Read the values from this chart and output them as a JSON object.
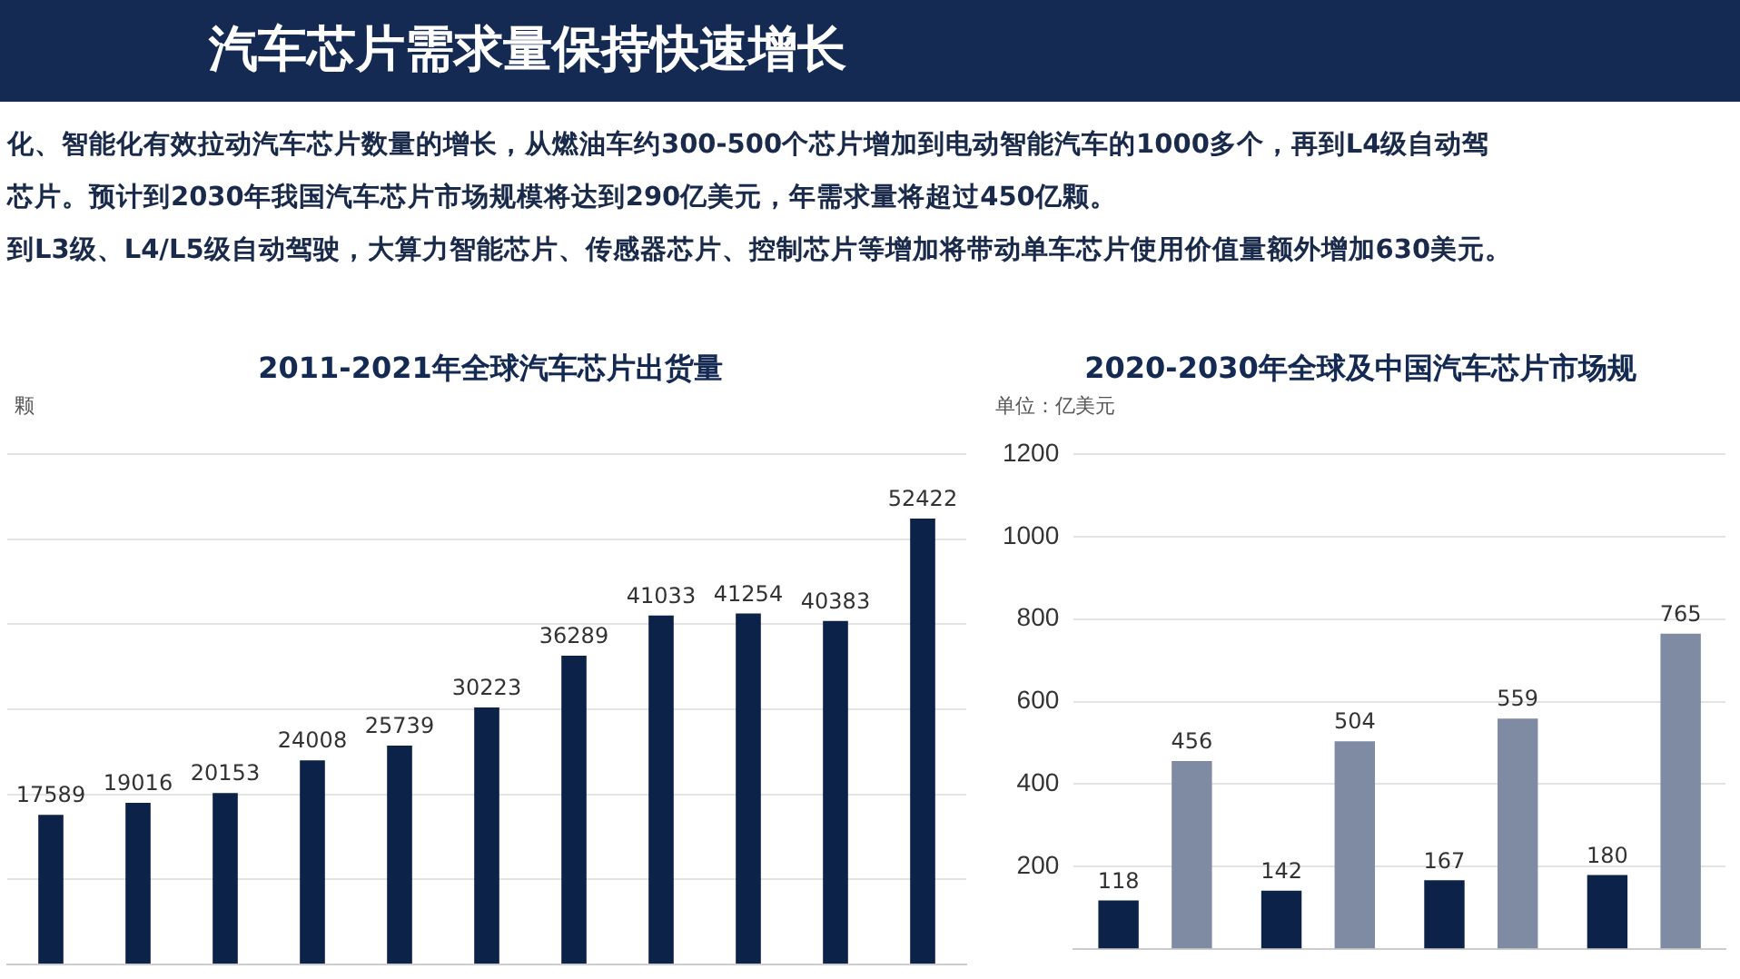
{
  "chart_data": [
    {
      "type": "other",
      "title": "汽车芯片需求量保持快速增长",
      "annotations": [
        "化、智能化有效拉动汽车芯片数量的增长，从燃油车约300-500个芯片增加到电动智能汽车的1000多个，再到L4级自动驾",
        "芯片。预计到2030年我国汽车芯片市场规模将达到290亿美元，年需求量将超过450亿颗。",
        "到L3级、L4/L5级自动驾驶，大算力智能芯片、传感器芯片、控制芯片等增加将带动单车芯片使用价值量额外增加630美元。"
      ]
    },
    {
      "type": "bar",
      "title": "2011-2021年全球汽车芯片出货量",
      "ylabel": "颗",
      "categories": [
        null,
        null,
        null,
        null,
        null,
        null,
        null,
        null,
        null,
        null,
        null
      ],
      "series": [
        {
          "color": "#0d2248",
          "values": [
            17589,
            19016,
            20153,
            24008,
            25739,
            30223,
            36289,
            41033,
            41254,
            40383,
            52422
          ]
        }
      ],
      "ylim": [
        0,
        60000
      ],
      "yticks": [
        {
          "value": 0,
          "label": null
        },
        {
          "value": 10000,
          "label": null
        },
        {
          "value": 20000,
          "label": null
        },
        {
          "value": 30000,
          "label": null
        },
        {
          "value": 40000,
          "label": null
        },
        {
          "value": 50000,
          "label": null
        },
        {
          "value": 60000,
          "label": null
        }
      ],
      "grid": "y",
      "tick_labels": false,
      "data_labels": true,
      "legend": false
    },
    {
      "type": "bar",
      "title": "2020-2030年全球及中国汽车芯片市场规",
      "ylabel": "单位：亿美元",
      "categories": [
        null,
        null,
        null,
        null
      ],
      "series": [
        {
          "color": "#0d2248",
          "values": [
            118,
            142,
            167,
            180
          ]
        },
        {
          "color": "#7f8ba3",
          "values": [
            456,
            504,
            559,
            765
          ]
        }
      ],
      "ylim": [
        0,
        1200
      ],
      "yticks": [
        {
          "value": 0,
          "label": null
        },
        200,
        400,
        600,
        800,
        1000,
        1200
      ],
      "grid": "y",
      "tick_labels": "y",
      "data_labels": true,
      "legend": false
    }
  ]
}
